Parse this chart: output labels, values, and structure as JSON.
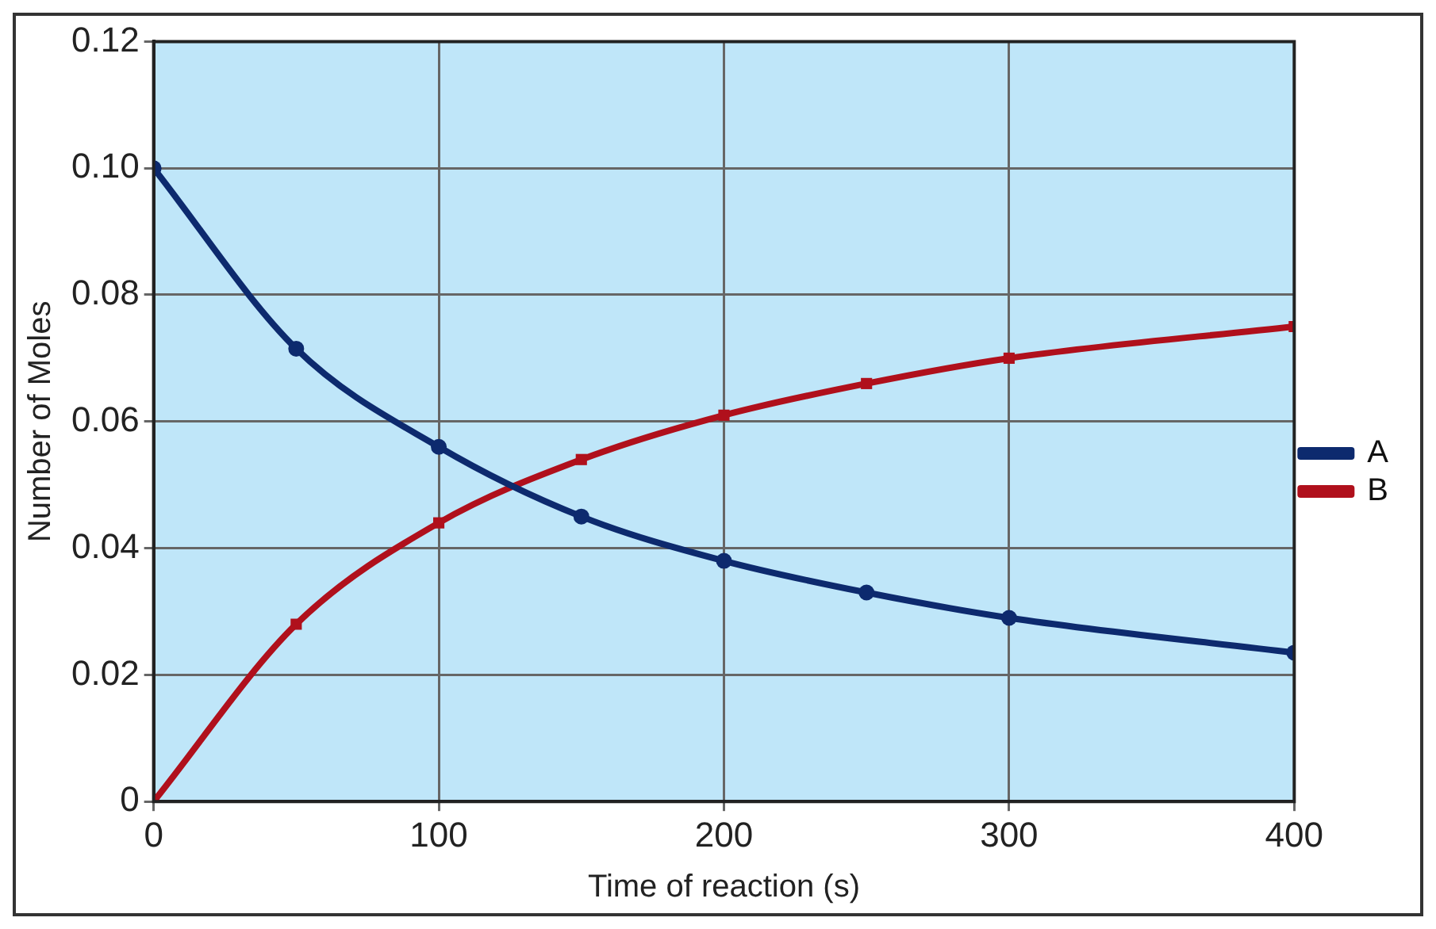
{
  "chart_data": {
    "type": "line",
    "xlabel": "Time of reaction (s)",
    "ylabel": "Number of Moles",
    "x": [
      0,
      50,
      100,
      150,
      200,
      250,
      300,
      400
    ],
    "series": [
      {
        "name": "A",
        "color": "#0d2a6e",
        "marker": "circle",
        "values": [
          0.1,
          0.0715,
          0.056,
          0.045,
          0.038,
          0.033,
          0.029,
          0.0235
        ]
      },
      {
        "name": "B",
        "color": "#b0101c",
        "marker": "square",
        "values": [
          0,
          0.028,
          0.044,
          0.054,
          0.061,
          0.066,
          0.07,
          0.075
        ]
      }
    ],
    "xlim": [
      0,
      400
    ],
    "xticks": [
      0,
      100,
      200,
      300,
      400
    ],
    "ylim": [
      0,
      0.12
    ],
    "yticks": [
      0,
      {
        "value": 0.02,
        "label": "0.02"
      },
      {
        "value": 0.04,
        "label": "0.04"
      },
      {
        "value": 0.06,
        "label": "0.06"
      },
      {
        "value": 0.08,
        "label": "0.08"
      },
      {
        "value": 0.1,
        "label": "0.10"
      },
      {
        "value": 0.12,
        "label": "0.12"
      }
    ],
    "grid": true,
    "legend": "right"
  }
}
